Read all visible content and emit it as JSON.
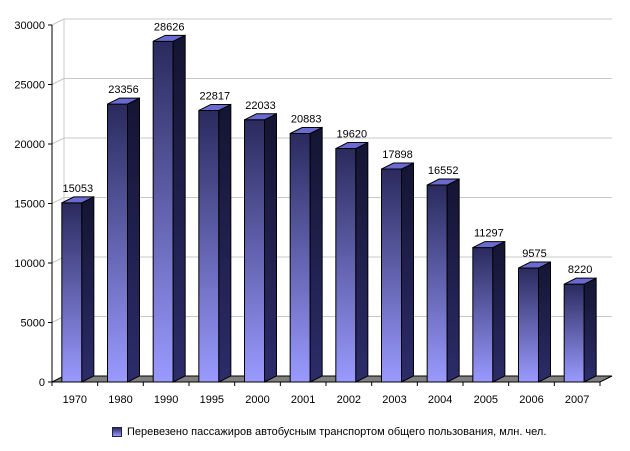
{
  "chart_data": {
    "type": "bar",
    "categories": [
      "1970",
      "1980",
      "1990",
      "1995",
      "2000",
      "2001",
      "2002",
      "2003",
      "2004",
      "2005",
      "2006",
      "2007"
    ],
    "values": [
      15053,
      23356,
      28626,
      22817,
      22033,
      20883,
      19620,
      17898,
      16552,
      11297,
      9575,
      8220
    ],
    "value_labels": [
      "15053",
      "23356",
      "28626",
      "22817",
      "22033",
      "20883",
      "19620",
      "17898",
      "16552",
      "11297",
      "9575",
      "8220"
    ],
    "y_ticks": [
      0,
      5000,
      10000,
      15000,
      20000,
      25000,
      30000
    ],
    "ylim": [
      0,
      30000
    ],
    "grid": true,
    "legend_position": "bottom",
    "series": [
      {
        "name": "Перевезено пассажиров автобусным транспортом общего пользования, млн. чел.",
        "values": [
          15053,
          23356,
          28626,
          22817,
          22033,
          20883,
          19620,
          17898,
          16552,
          11297,
          9575,
          8220
        ]
      }
    ],
    "colors": {
      "bar_top": "#2a2a5e",
      "bar_bottom": "#9a9aff",
      "bar_side": "#1a1a40",
      "bar_cap": "#6a6ad0",
      "floor": "#808080",
      "grid": "#c8c8c8"
    }
  },
  "legend": {
    "label": "Перевезено пассажиров автобусным транспортом общего пользования, млн. чел."
  }
}
